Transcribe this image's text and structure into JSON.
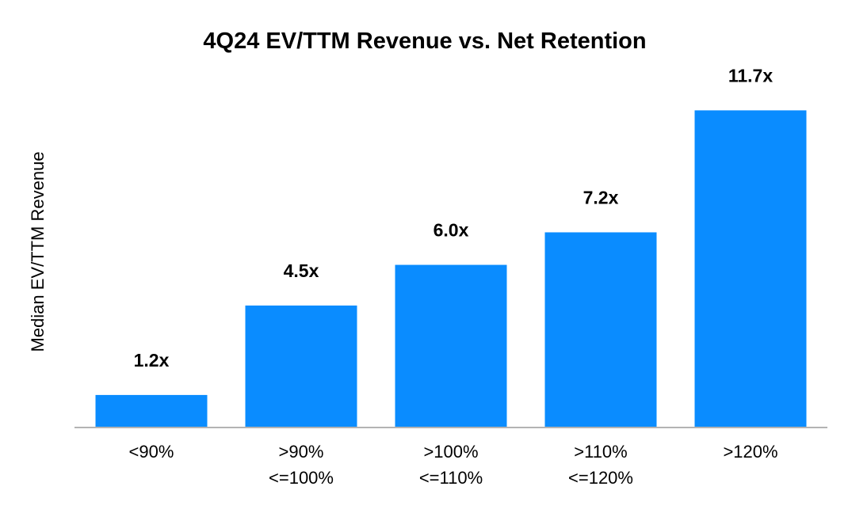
{
  "chart_data": {
    "type": "bar",
    "title": "4Q24 EV/TTM Revenue vs. Net Retention",
    "xlabel": "",
    "ylabel": "Median EV/TTM Revenue",
    "categories": [
      [
        "<90%"
      ],
      [
        ">90%",
        "<=100%"
      ],
      [
        ">100%",
        "<=110%"
      ],
      [
        ">110%",
        "<=120%"
      ],
      [
        ">120%"
      ]
    ],
    "values": [
      1.2,
      4.5,
      6.0,
      7.2,
      11.7
    ],
    "data_labels": [
      "1.2x",
      "4.5x",
      "6.0x",
      "7.2x",
      "11.7x"
    ],
    "ylim": [
      0,
      12.5
    ],
    "grid": false,
    "colors": {
      "bar": "#0a8cff",
      "axis": "#b3b3b3",
      "text": "#000000"
    }
  }
}
